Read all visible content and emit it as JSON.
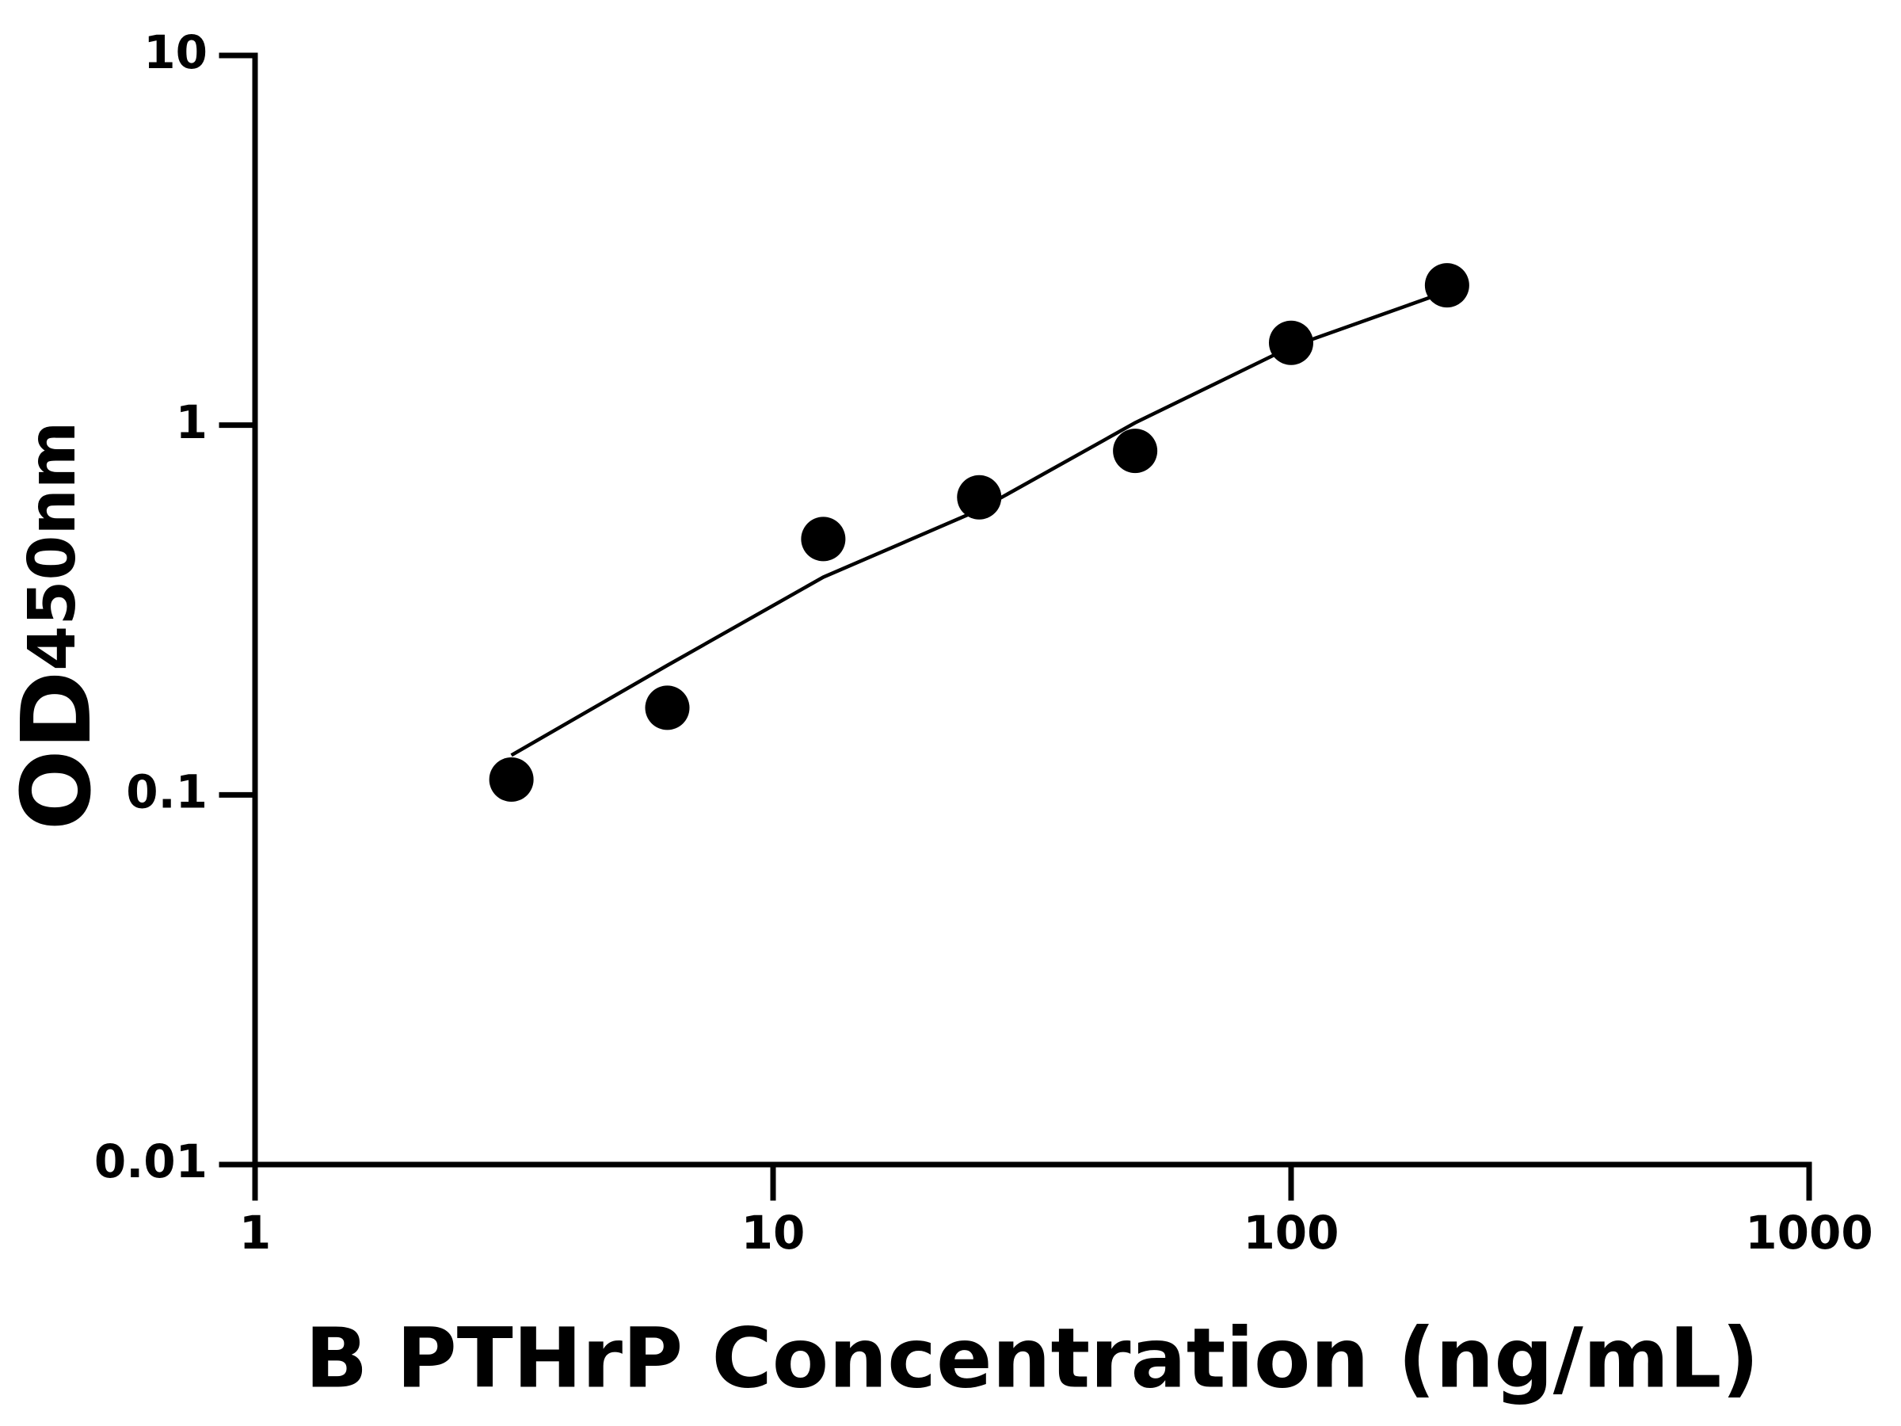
{
  "chart_data": {
    "type": "scatter",
    "x_label": "B PTHrP Concentration (ng/mL)",
    "y_label": {
      "main": "OD",
      "sub": "450nm"
    },
    "x": [
      3.125,
      6.25,
      12.5,
      25,
      50,
      100,
      200
    ],
    "values": [
      0.11,
      0.172,
      0.492,
      0.638,
      0.852,
      1.67,
      2.39
    ],
    "color": "#000000",
    "fit_line": {
      "x": [
        3.125,
        6.25,
        12.5,
        25,
        50,
        100,
        200
      ],
      "values": [
        0.128,
        0.224,
        0.388,
        0.59,
        1.015,
        1.63,
        2.3
      ],
      "color": "#000000"
    },
    "x_log": true,
    "y_log": true,
    "xlim": [
      1,
      1000
    ],
    "xticks": [
      1,
      10,
      100,
      1000
    ],
    "ylim": [
      0.01,
      10
    ],
    "yticks": [
      0.01,
      0.1,
      1,
      10
    ]
  }
}
